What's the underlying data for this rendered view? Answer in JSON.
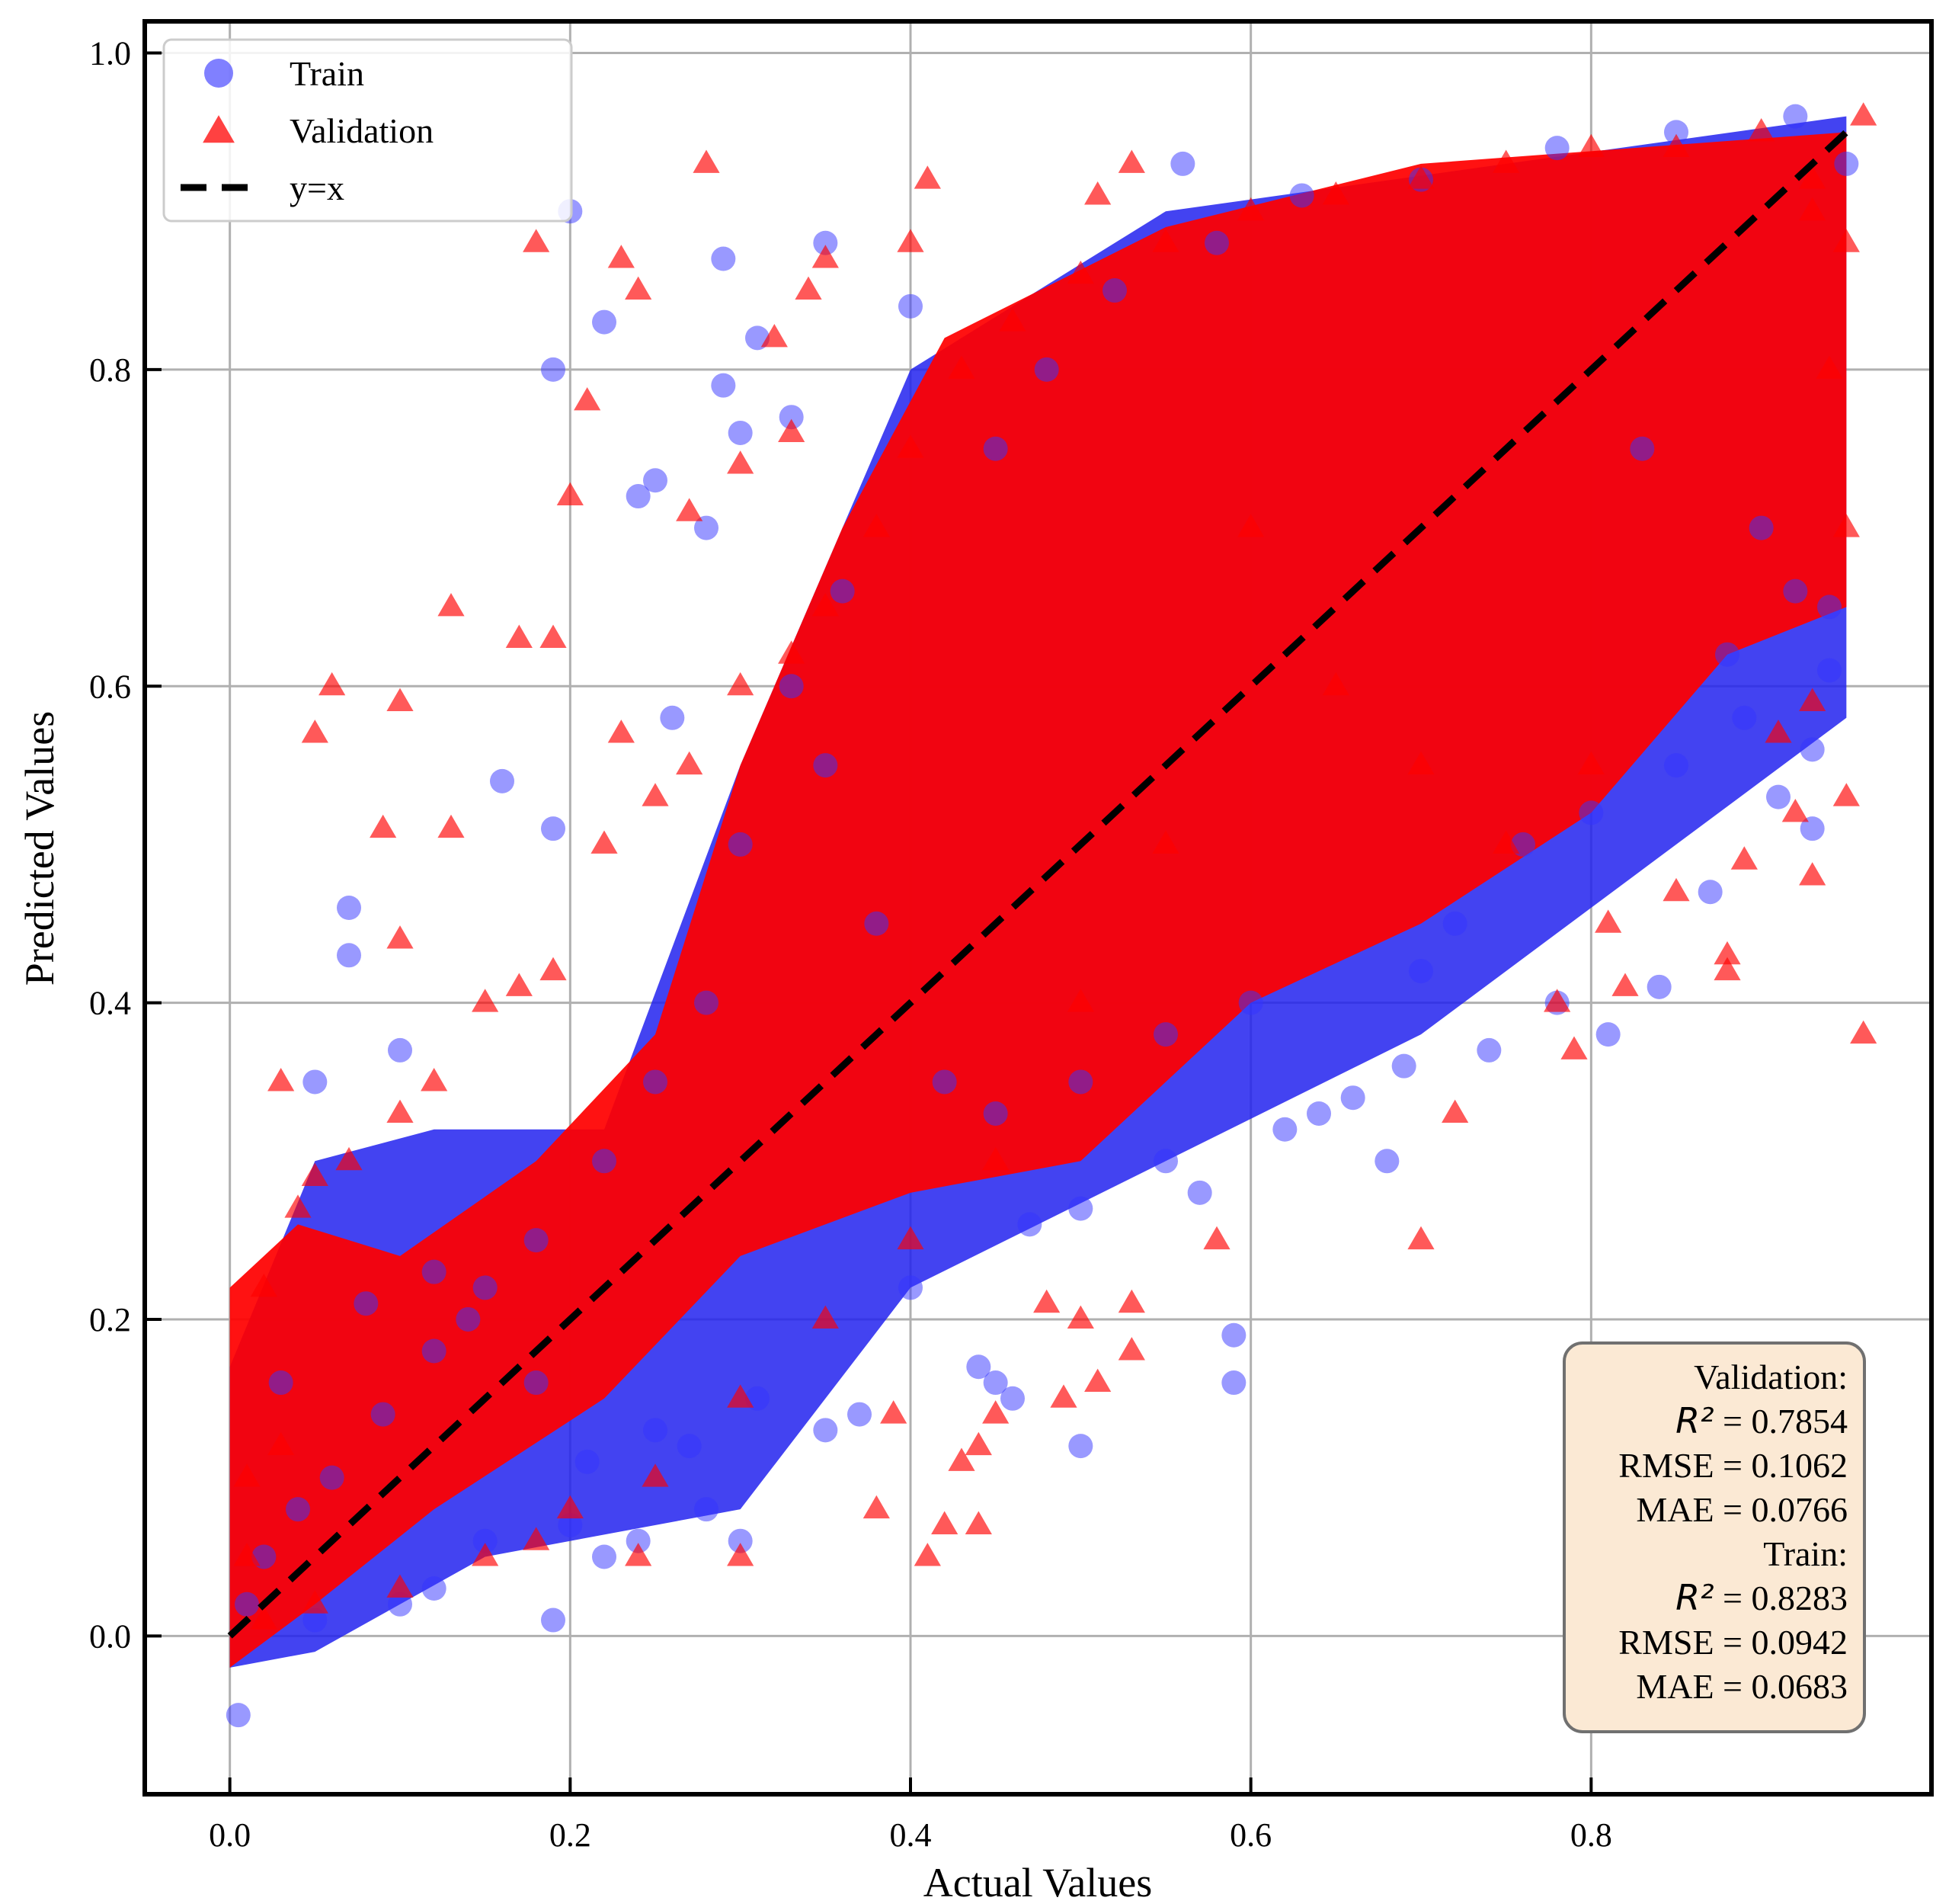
{
  "chart_data": {
    "type": "scatter",
    "title": "",
    "xlabel": "Actual Values",
    "ylabel": "Predicted Values",
    "xlim": [
      -0.05,
      1.0
    ],
    "ylim": [
      -0.1,
      1.02
    ],
    "x_ticks": [
      0.0,
      0.2,
      0.4,
      0.6,
      0.8
    ],
    "x_tick_labels": [
      "0.0",
      "0.2",
      "0.4",
      "0.6",
      "0.8"
    ],
    "y_ticks": [
      0.0,
      0.2,
      0.4,
      0.6,
      0.8,
      1.0
    ],
    "y_tick_labels": [
      "0.0",
      "0.2",
      "0.4",
      "0.6",
      "0.8",
      "1.0"
    ],
    "grid": true,
    "legend": {
      "placement": "top-left",
      "entries": [
        {
          "label": "Train",
          "marker": "circle",
          "color": "#5555ff"
        },
        {
          "label": "Validation",
          "marker": "triangle",
          "color": "#ff2020"
        },
        {
          "label": "y=x",
          "marker": "dashed-line",
          "color": "#000000"
        }
      ]
    },
    "series": [
      {
        "name": "Train",
        "marker": "circle",
        "color": "#3333ff",
        "alpha": 0.5,
        "points": [
          [
            0.19,
            0.8
          ],
          [
            0.2,
            0.9
          ],
          [
            0.22,
            0.83
          ],
          [
            0.29,
            0.87
          ],
          [
            0.35,
            0.88
          ],
          [
            0.25,
            0.73
          ],
          [
            0.24,
            0.72
          ],
          [
            0.28,
            0.7
          ],
          [
            0.26,
            0.58
          ],
          [
            0.16,
            0.54
          ],
          [
            0.07,
            0.46
          ],
          [
            0.07,
            0.43
          ],
          [
            0.19,
            0.51
          ],
          [
            0.05,
            0.35
          ],
          [
            0.1,
            0.37
          ],
          [
            0.29,
            0.79
          ],
          [
            0.3,
            0.76
          ],
          [
            0.31,
            0.82
          ],
          [
            0.33,
            0.77
          ],
          [
            0.36,
            0.66
          ],
          [
            0.56,
            0.93
          ],
          [
            0.4,
            0.84
          ],
          [
            0.83,
            0.75
          ],
          [
            0.9,
            0.7
          ],
          [
            0.93,
            0.56
          ],
          [
            0.93,
            0.51
          ],
          [
            0.91,
            0.53
          ],
          [
            0.87,
            0.47
          ],
          [
            0.84,
            0.41
          ],
          [
            0.81,
            0.38
          ],
          [
            0.78,
            0.4
          ],
          [
            0.74,
            0.37
          ],
          [
            0.69,
            0.36
          ],
          [
            0.64,
            0.33
          ],
          [
            0.68,
            0.3
          ],
          [
            0.59,
            0.19
          ],
          [
            0.59,
            0.16
          ],
          [
            0.5,
            0.12
          ],
          [
            0.45,
            0.16
          ],
          [
            0.44,
            0.17
          ],
          [
            0.46,
            0.15
          ],
          [
            0.3,
            0.06
          ],
          [
            0.19,
            0.01
          ],
          [
            0.005,
            -0.05
          ],
          [
            0.22,
            0.05
          ],
          [
            0.24,
            0.06
          ],
          [
            0.28,
            0.08
          ],
          [
            0.2,
            0.07
          ],
          [
            0.15,
            0.06
          ],
          [
            0.05,
            0.01
          ],
          [
            0.1,
            0.02
          ],
          [
            0.12,
            0.03
          ],
          [
            0.03,
            0.16
          ],
          [
            0.08,
            0.21
          ],
          [
            0.12,
            0.23
          ],
          [
            0.14,
            0.2
          ],
          [
            0.18,
            0.16
          ],
          [
            0.21,
            0.11
          ],
          [
            0.25,
            0.13
          ],
          [
            0.27,
            0.12
          ],
          [
            0.31,
            0.15
          ],
          [
            0.35,
            0.13
          ],
          [
            0.37,
            0.14
          ],
          [
            0.4,
            0.22
          ],
          [
            0.47,
            0.26
          ],
          [
            0.5,
            0.27
          ],
          [
            0.55,
            0.3
          ],
          [
            0.57,
            0.28
          ],
          [
            0.62,
            0.32
          ],
          [
            0.66,
            0.34
          ],
          [
            0.7,
            0.42
          ],
          [
            0.72,
            0.45
          ],
          [
            0.76,
            0.5
          ],
          [
            0.8,
            0.52
          ],
          [
            0.85,
            0.55
          ],
          [
            0.89,
            0.58
          ],
          [
            0.94,
            0.61
          ],
          [
            0.94,
            0.65
          ],
          [
            0.92,
            0.66
          ],
          [
            0.88,
            0.62
          ],
          [
            0.6,
            0.4
          ],
          [
            0.55,
            0.38
          ],
          [
            0.5,
            0.35
          ],
          [
            0.45,
            0.33
          ],
          [
            0.42,
            0.35
          ],
          [
            0.38,
            0.45
          ],
          [
            0.35,
            0.55
          ],
          [
            0.33,
            0.6
          ],
          [
            0.3,
            0.5
          ],
          [
            0.28,
            0.4
          ],
          [
            0.25,
            0.35
          ],
          [
            0.22,
            0.3
          ],
          [
            0.18,
            0.25
          ],
          [
            0.15,
            0.22
          ],
          [
            0.12,
            0.18
          ],
          [
            0.09,
            0.14
          ],
          [
            0.06,
            0.1
          ],
          [
            0.04,
            0.08
          ],
          [
            0.02,
            0.05
          ],
          [
            0.01,
            0.02
          ],
          [
            0.45,
            0.75
          ],
          [
            0.48,
            0.8
          ],
          [
            0.52,
            0.85
          ],
          [
            0.58,
            0.88
          ],
          [
            0.63,
            0.91
          ],
          [
            0.7,
            0.92
          ],
          [
            0.78,
            0.94
          ],
          [
            0.85,
            0.95
          ],
          [
            0.92,
            0.96
          ],
          [
            0.95,
            0.93
          ]
        ]
      },
      {
        "name": "Validation",
        "marker": "triangle",
        "color": "#ff0000",
        "alpha": 0.65,
        "points": [
          [
            0.28,
            0.93
          ],
          [
            0.18,
            0.88
          ],
          [
            0.23,
            0.87
          ],
          [
            0.24,
            0.85
          ],
          [
            0.41,
            0.92
          ],
          [
            0.4,
            0.88
          ],
          [
            0.35,
            0.87
          ],
          [
            0.34,
            0.85
          ],
          [
            0.21,
            0.78
          ],
          [
            0.2,
            0.72
          ],
          [
            0.13,
            0.65
          ],
          [
            0.17,
            0.63
          ],
          [
            0.19,
            0.63
          ],
          [
            0.06,
            0.6
          ],
          [
            0.1,
            0.59
          ],
          [
            0.05,
            0.57
          ],
          [
            0.23,
            0.57
          ],
          [
            0.09,
            0.51
          ],
          [
            0.13,
            0.51
          ],
          [
            0.1,
            0.44
          ],
          [
            0.03,
            0.35
          ],
          [
            0.32,
            0.82
          ],
          [
            0.33,
            0.76
          ],
          [
            0.3,
            0.74
          ],
          [
            0.27,
            0.71
          ],
          [
            0.53,
            0.93
          ],
          [
            0.51,
            0.91
          ],
          [
            0.96,
            0.96
          ],
          [
            0.93,
            0.9
          ],
          [
            0.94,
            0.8
          ],
          [
            0.95,
            0.7
          ],
          [
            0.93,
            0.59
          ],
          [
            0.91,
            0.57
          ],
          [
            0.95,
            0.53
          ],
          [
            0.92,
            0.52
          ],
          [
            0.89,
            0.49
          ],
          [
            0.93,
            0.48
          ],
          [
            0.85,
            0.47
          ],
          [
            0.81,
            0.45
          ],
          [
            0.88,
            0.43
          ],
          [
            0.88,
            0.42
          ],
          [
            0.82,
            0.41
          ],
          [
            0.78,
            0.4
          ],
          [
            0.96,
            0.38
          ],
          [
            0.79,
            0.37
          ],
          [
            0.72,
            0.33
          ],
          [
            0.7,
            0.25
          ],
          [
            0.58,
            0.25
          ],
          [
            0.53,
            0.21
          ],
          [
            0.53,
            0.18
          ],
          [
            0.5,
            0.2
          ],
          [
            0.51,
            0.16
          ],
          [
            0.49,
            0.15
          ],
          [
            0.48,
            0.21
          ],
          [
            0.45,
            0.14
          ],
          [
            0.44,
            0.12
          ],
          [
            0.43,
            0.11
          ],
          [
            0.39,
            0.14
          ],
          [
            0.38,
            0.08
          ],
          [
            0.42,
            0.07
          ],
          [
            0.44,
            0.07
          ],
          [
            0.41,
            0.05
          ],
          [
            0.3,
            0.05
          ],
          [
            0.24,
            0.05
          ],
          [
            0.18,
            0.06
          ],
          [
            0.02,
            0.22
          ],
          [
            0.04,
            0.27
          ],
          [
            0.05,
            0.29
          ],
          [
            0.07,
            0.3
          ],
          [
            0.1,
            0.33
          ],
          [
            0.12,
            0.35
          ],
          [
            0.15,
            0.4
          ],
          [
            0.17,
            0.41
          ],
          [
            0.19,
            0.42
          ],
          [
            0.22,
            0.5
          ],
          [
            0.25,
            0.53
          ],
          [
            0.27,
            0.55
          ],
          [
            0.3,
            0.6
          ],
          [
            0.33,
            0.62
          ],
          [
            0.35,
            0.65
          ],
          [
            0.38,
            0.7
          ],
          [
            0.4,
            0.75
          ],
          [
            0.43,
            0.8
          ],
          [
            0.46,
            0.83
          ],
          [
            0.5,
            0.86
          ],
          [
            0.55,
            0.88
          ],
          [
            0.6,
            0.9
          ],
          [
            0.65,
            0.91
          ],
          [
            0.7,
            0.92
          ],
          [
            0.75,
            0.93
          ],
          [
            0.8,
            0.94
          ],
          [
            0.85,
            0.94
          ],
          [
            0.9,
            0.95
          ],
          [
            0.93,
            0.92
          ],
          [
            0.95,
            0.88
          ],
          [
            0.6,
            0.7
          ],
          [
            0.65,
            0.6
          ],
          [
            0.7,
            0.55
          ],
          [
            0.75,
            0.5
          ],
          [
            0.8,
            0.55
          ],
          [
            0.55,
            0.5
          ],
          [
            0.5,
            0.4
          ],
          [
            0.45,
            0.3
          ],
          [
            0.4,
            0.25
          ],
          [
            0.35,
            0.2
          ],
          [
            0.3,
            0.15
          ],
          [
            0.25,
            0.1
          ],
          [
            0.2,
            0.08
          ],
          [
            0.15,
            0.05
          ],
          [
            0.1,
            0.03
          ],
          [
            0.05,
            0.02
          ],
          [
            0.02,
            0.01
          ],
          [
            0.01,
            0.1
          ],
          [
            0.01,
            0.05
          ],
          [
            0.03,
            0.12
          ]
        ]
      },
      {
        "name": "y=x",
        "type": "line",
        "style": "dashed",
        "color": "#000000",
        "points": [
          [
            0.0,
            0.0
          ],
          [
            0.95,
            0.95
          ]
        ]
      }
    ],
    "dense_clusters": [
      {
        "series": "Train",
        "polygon": [
          [
            0.0,
            -0.02
          ],
          [
            0.0,
            0.17
          ],
          [
            0.05,
            0.3
          ],
          [
            0.12,
            0.32
          ],
          [
            0.22,
            0.32
          ],
          [
            0.3,
            0.55
          ],
          [
            0.4,
            0.8
          ],
          [
            0.55,
            0.9
          ],
          [
            0.95,
            0.96
          ],
          [
            0.95,
            0.58
          ],
          [
            0.85,
            0.5
          ],
          [
            0.7,
            0.38
          ],
          [
            0.55,
            0.3
          ],
          [
            0.4,
            0.22
          ],
          [
            0.3,
            0.08
          ],
          [
            0.15,
            0.05
          ],
          [
            0.05,
            -0.01
          ]
        ]
      },
      {
        "series": "Validation",
        "polygon": [
          [
            0.0,
            -0.02
          ],
          [
            0.0,
            0.22
          ],
          [
            0.04,
            0.26
          ],
          [
            0.1,
            0.24
          ],
          [
            0.18,
            0.3
          ],
          [
            0.25,
            0.38
          ],
          [
            0.3,
            0.55
          ],
          [
            0.36,
            0.7
          ],
          [
            0.42,
            0.82
          ],
          [
            0.55,
            0.89
          ],
          [
            0.7,
            0.93
          ],
          [
            0.95,
            0.95
          ],
          [
            0.95,
            0.65
          ],
          [
            0.88,
            0.62
          ],
          [
            0.8,
            0.52
          ],
          [
            0.7,
            0.45
          ],
          [
            0.6,
            0.4
          ],
          [
            0.5,
            0.3
          ],
          [
            0.4,
            0.28
          ],
          [
            0.3,
            0.24
          ],
          [
            0.22,
            0.15
          ],
          [
            0.12,
            0.08
          ],
          [
            0.05,
            0.02
          ]
        ]
      }
    ],
    "annotations": {
      "stats_box": {
        "placement": "bottom-right",
        "background": "#fbe9d4",
        "lines": [
          {
            "label": "Validation:",
            "value": ""
          },
          {
            "label": "R²",
            "value": " = 0.7854",
            "math": true
          },
          {
            "label": "RMSE",
            "value": " = 0.1062"
          },
          {
            "label": "MAE",
            "value": " = 0.0766"
          },
          {
            "label": "Train:",
            "value": ""
          },
          {
            "label": "R²",
            "value": " = 0.8283",
            "math": true
          },
          {
            "label": "RMSE",
            "value": " = 0.0942"
          },
          {
            "label": "MAE",
            "value": " = 0.0683"
          }
        ]
      }
    }
  }
}
